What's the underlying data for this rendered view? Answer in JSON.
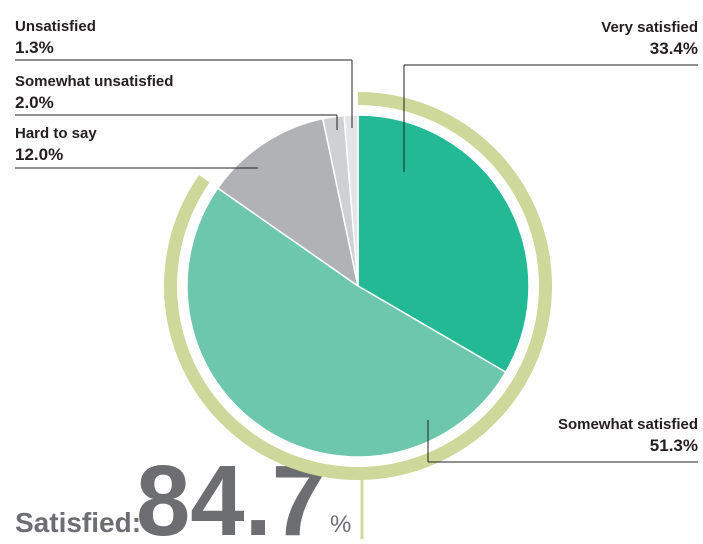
{
  "chart_data": {
    "type": "pie",
    "categories": [
      "Very satisfied",
      "Somewhat satisfied",
      "Hard to say",
      "Somewhat unsatisfied",
      "Unsatisfied"
    ],
    "values": [
      33.4,
      51.3,
      12.0,
      2.0,
      1.3
    ],
    "value_labels": [
      "33.4%",
      "51.3%",
      "12.0%",
      "2.0%",
      "1.3%"
    ],
    "colors": [
      "#22b994",
      "#6cc7ad",
      "#b1b2b6",
      "#cfd0d2",
      "#e4e5e6"
    ],
    "satisfied_label": "Satisfied:",
    "satisfied_value": 84.7,
    "satisfied_unit": "%",
    "ring_color": "#cdd89a"
  }
}
